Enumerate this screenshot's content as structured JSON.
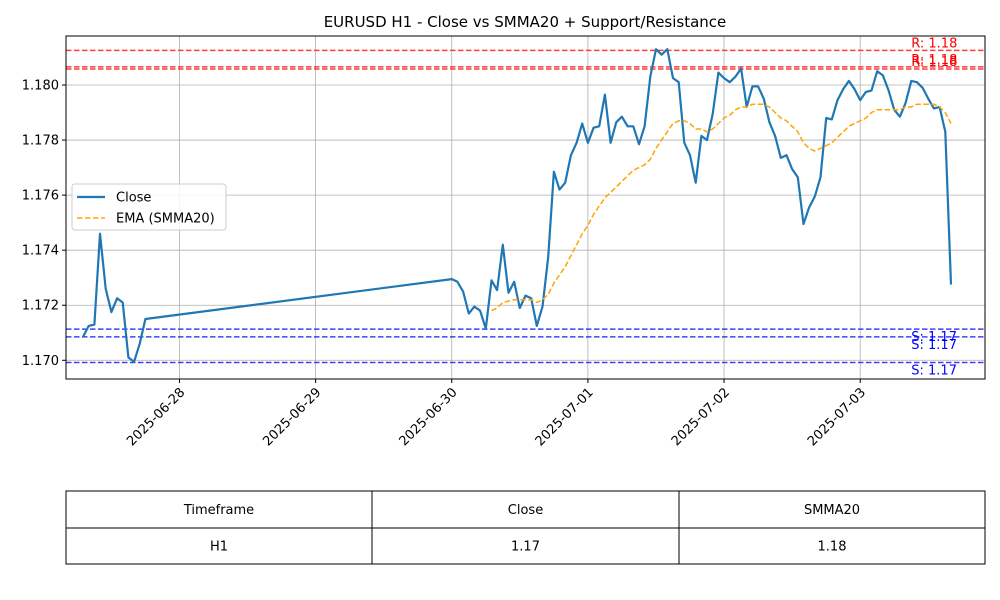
{
  "chart_data": {
    "type": "line",
    "title": "EURUSD H1 - Close vs SMMA20 + Support/Resistance",
    "xlabel": "",
    "ylabel": "",
    "x_ticks": [
      "2025-06-28",
      "2025-06-29",
      "2025-06-30",
      "2025-07-01",
      "2025-07-02",
      "2025-07-03"
    ],
    "y_ticks": [
      "1.170",
      "1.172",
      "1.174",
      "1.176",
      "1.178",
      "1.180"
    ],
    "xlim": [
      "2025-06-27 04:00",
      "2025-07-03 22:00"
    ],
    "ylim": [
      1.16932,
      1.18178
    ],
    "grid": true,
    "legend_position": "center-left",
    "series": [
      {
        "name": "Close",
        "color": "#1f77b4",
        "style": "solid",
        "points": [
          [
            "2025-06-27 07:00",
            1.17085
          ],
          [
            "2025-06-27 08:00",
            1.17125
          ],
          [
            "2025-06-27 09:00",
            1.1713
          ],
          [
            "2025-06-27 10:00",
            1.1746
          ],
          [
            "2025-06-27 11:00",
            1.1726
          ],
          [
            "2025-06-27 12:00",
            1.17175
          ],
          [
            "2025-06-27 13:00",
            1.17225
          ],
          [
            "2025-06-27 14:00",
            1.1721
          ],
          [
            "2025-06-27 15:00",
            1.1701
          ],
          [
            "2025-06-27 16:00",
            1.16995
          ],
          [
            "2025-06-27 17:00",
            1.1706
          ],
          [
            "2025-06-27 18:00",
            1.1715
          ],
          [
            "2025-06-30 00:00",
            1.17295
          ],
          [
            "2025-06-30 01:00",
            1.17285
          ],
          [
            "2025-06-30 02:00",
            1.1725
          ],
          [
            "2025-06-30 03:00",
            1.1717
          ],
          [
            "2025-06-30 04:00",
            1.17195
          ],
          [
            "2025-06-30 05:00",
            1.1718
          ],
          [
            "2025-06-30 06:00",
            1.17115
          ],
          [
            "2025-06-30 07:00",
            1.1729
          ],
          [
            "2025-06-30 08:00",
            1.17255
          ],
          [
            "2025-06-30 09:00",
            1.1742
          ],
          [
            "2025-06-30 10:00",
            1.17245
          ],
          [
            "2025-06-30 11:00",
            1.17285
          ],
          [
            "2025-06-30 12:00",
            1.1719
          ],
          [
            "2025-06-30 13:00",
            1.17235
          ],
          [
            "2025-06-30 14:00",
            1.17225
          ],
          [
            "2025-06-30 15:00",
            1.17125
          ],
          [
            "2025-06-30 16:00",
            1.17195
          ],
          [
            "2025-06-30 17:00",
            1.17375
          ],
          [
            "2025-06-30 18:00",
            1.17685
          ],
          [
            "2025-06-30 19:00",
            1.1762
          ],
          [
            "2025-06-30 20:00",
            1.17645
          ],
          [
            "2025-06-30 21:00",
            1.17745
          ],
          [
            "2025-06-30 22:00",
            1.1779
          ],
          [
            "2025-06-30 23:00",
            1.1786
          ],
          [
            "2025-07-01 00:00",
            1.1779
          ],
          [
            "2025-07-01 01:00",
            1.17845
          ],
          [
            "2025-07-01 02:00",
            1.1785
          ],
          [
            "2025-07-01 03:00",
            1.17965
          ],
          [
            "2025-07-01 04:00",
            1.1779
          ],
          [
            "2025-07-01 05:00",
            1.17865
          ],
          [
            "2025-07-01 06:00",
            1.17885
          ],
          [
            "2025-07-01 07:00",
            1.1785
          ],
          [
            "2025-07-01 08:00",
            1.1785
          ],
          [
            "2025-07-01 09:00",
            1.17785
          ],
          [
            "2025-07-01 10:00",
            1.1785
          ],
          [
            "2025-07-01 11:00",
            1.1803
          ],
          [
            "2025-07-01 12:00",
            1.1813
          ],
          [
            "2025-07-01 13:00",
            1.1811
          ],
          [
            "2025-07-01 14:00",
            1.1813
          ],
          [
            "2025-07-01 15:00",
            1.18025
          ],
          [
            "2025-07-01 16:00",
            1.1801
          ],
          [
            "2025-07-01 17:00",
            1.1779
          ],
          [
            "2025-07-01 18:00",
            1.17745
          ],
          [
            "2025-07-01 19:00",
            1.17645
          ],
          [
            "2025-07-01 20:00",
            1.17815
          ],
          [
            "2025-07-01 21:00",
            1.178
          ],
          [
            "2025-07-01 22:00",
            1.17895
          ],
          [
            "2025-07-01 23:00",
            1.18045
          ],
          [
            "2025-07-02 00:00",
            1.18025
          ],
          [
            "2025-07-02 01:00",
            1.1801
          ],
          [
            "2025-07-02 02:00",
            1.1803
          ],
          [
            "2025-07-02 03:00",
            1.1806
          ],
          [
            "2025-07-02 04:00",
            1.1792
          ],
          [
            "2025-07-02 05:00",
            1.17995
          ],
          [
            "2025-07-02 06:00",
            1.17995
          ],
          [
            "2025-07-02 07:00",
            1.1795
          ],
          [
            "2025-07-02 08:00",
            1.17865
          ],
          [
            "2025-07-02 09:00",
            1.17815
          ],
          [
            "2025-07-02 10:00",
            1.17735
          ],
          [
            "2025-07-02 11:00",
            1.17745
          ],
          [
            "2025-07-02 12:00",
            1.17695
          ],
          [
            "2025-07-02 13:00",
            1.17665
          ],
          [
            "2025-07-02 14:00",
            1.17495
          ],
          [
            "2025-07-02 15:00",
            1.17555
          ],
          [
            "2025-07-02 16:00",
            1.17595
          ],
          [
            "2025-07-02 17:00",
            1.17665
          ],
          [
            "2025-07-02 18:00",
            1.1788
          ],
          [
            "2025-07-02 19:00",
            1.17875
          ],
          [
            "2025-07-02 20:00",
            1.17945
          ],
          [
            "2025-07-02 21:00",
            1.17985
          ],
          [
            "2025-07-02 22:00",
            1.18015
          ],
          [
            "2025-07-02 23:00",
            1.17985
          ],
          [
            "2025-07-03 00:00",
            1.17945
          ],
          [
            "2025-07-03 01:00",
            1.17975
          ],
          [
            "2025-07-03 02:00",
            1.1798
          ],
          [
            "2025-07-03 03:00",
            1.1805
          ],
          [
            "2025-07-03 04:00",
            1.18035
          ],
          [
            "2025-07-03 05:00",
            1.1798
          ],
          [
            "2025-07-03 06:00",
            1.1791
          ],
          [
            "2025-07-03 07:00",
            1.17885
          ],
          [
            "2025-07-03 08:00",
            1.17935
          ],
          [
            "2025-07-03 09:00",
            1.18015
          ],
          [
            "2025-07-03 10:00",
            1.1801
          ],
          [
            "2025-07-03 11:00",
            1.1799
          ],
          [
            "2025-07-03 12:00",
            1.1795
          ],
          [
            "2025-07-03 13:00",
            1.17915
          ],
          [
            "2025-07-03 14:00",
            1.1792
          ],
          [
            "2025-07-03 15:00",
            1.1783
          ],
          [
            "2025-07-03 16:00",
            1.17275
          ]
        ]
      },
      {
        "name": "EMA (SMMA20)",
        "color": "#ffa500",
        "style": "dashed",
        "points": [
          [
            "2025-06-30 07:00",
            1.1718
          ],
          [
            "2025-06-30 08:00",
            1.1719
          ],
          [
            "2025-06-30 09:00",
            1.1721
          ],
          [
            "2025-06-30 10:00",
            1.17215
          ],
          [
            "2025-06-30 11:00",
            1.1722
          ],
          [
            "2025-06-30 12:00",
            1.1722
          ],
          [
            "2025-06-30 13:00",
            1.1722
          ],
          [
            "2025-06-30 14:00",
            1.1722
          ],
          [
            "2025-06-30 15:00",
            1.1721
          ],
          [
            "2025-06-30 16:00",
            1.1722
          ],
          [
            "2025-06-30 17:00",
            1.1724
          ],
          [
            "2025-06-30 18:00",
            1.1728
          ],
          [
            "2025-06-30 19:00",
            1.1731
          ],
          [
            "2025-06-30 20:00",
            1.1734
          ],
          [
            "2025-06-30 21:00",
            1.1738
          ],
          [
            "2025-06-30 22:00",
            1.1742
          ],
          [
            "2025-06-30 23:00",
            1.1746
          ],
          [
            "2025-07-01 00:00",
            1.1749
          ],
          [
            "2025-07-01 01:00",
            1.1753
          ],
          [
            "2025-07-01 02:00",
            1.1756
          ],
          [
            "2025-07-01 03:00",
            1.1759
          ],
          [
            "2025-07-01 04:00",
            1.1761
          ],
          [
            "2025-07-01 05:00",
            1.1763
          ],
          [
            "2025-07-01 06:00",
            1.1765
          ],
          [
            "2025-07-01 07:00",
            1.1767
          ],
          [
            "2025-07-01 08:00",
            1.1769
          ],
          [
            "2025-07-01 09:00",
            1.177
          ],
          [
            "2025-07-01 10:00",
            1.1771
          ],
          [
            "2025-07-01 11:00",
            1.1773
          ],
          [
            "2025-07-01 12:00",
            1.1777
          ],
          [
            "2025-07-01 13:00",
            1.178
          ],
          [
            "2025-07-01 14:00",
            1.1783
          ],
          [
            "2025-07-01 15:00",
            1.1786
          ],
          [
            "2025-07-01 16:00",
            1.1787
          ],
          [
            "2025-07-01 17:00",
            1.1787
          ],
          [
            "2025-07-01 18:00",
            1.1786
          ],
          [
            "2025-07-01 19:00",
            1.1784
          ],
          [
            "2025-07-01 20:00",
            1.1784
          ],
          [
            "2025-07-01 21:00",
            1.1783
          ],
          [
            "2025-07-01 22:00",
            1.1784
          ],
          [
            "2025-07-01 23:00",
            1.1786
          ],
          [
            "2025-07-02 00:00",
            1.1788
          ],
          [
            "2025-07-02 01:00",
            1.1789
          ],
          [
            "2025-07-02 02:00",
            1.1791
          ],
          [
            "2025-07-02 03:00",
            1.1792
          ],
          [
            "2025-07-02 04:00",
            1.1792
          ],
          [
            "2025-07-02 05:00",
            1.1793
          ],
          [
            "2025-07-02 06:00",
            1.1793
          ],
          [
            "2025-07-02 07:00",
            1.1793
          ],
          [
            "2025-07-02 08:00",
            1.1792
          ],
          [
            "2025-07-02 09:00",
            1.179
          ],
          [
            "2025-07-02 10:00",
            1.1788
          ],
          [
            "2025-07-02 11:00",
            1.1787
          ],
          [
            "2025-07-02 12:00",
            1.1785
          ],
          [
            "2025-07-02 13:00",
            1.1783
          ],
          [
            "2025-07-02 14:00",
            1.1779
          ],
          [
            "2025-07-02 15:00",
            1.1777
          ],
          [
            "2025-07-02 16:00",
            1.1776
          ],
          [
            "2025-07-02 17:00",
            1.1777
          ],
          [
            "2025-07-02 18:00",
            1.1778
          ],
          [
            "2025-07-02 19:00",
            1.1779
          ],
          [
            "2025-07-02 20:00",
            1.1781
          ],
          [
            "2025-07-02 21:00",
            1.1783
          ],
          [
            "2025-07-02 22:00",
            1.1785
          ],
          [
            "2025-07-02 23:00",
            1.1786
          ],
          [
            "2025-07-03 00:00",
            1.1787
          ],
          [
            "2025-07-03 01:00",
            1.1788
          ],
          [
            "2025-07-03 02:00",
            1.179
          ],
          [
            "2025-07-03 03:00",
            1.1791
          ],
          [
            "2025-07-03 04:00",
            1.1791
          ],
          [
            "2025-07-03 05:00",
            1.1791
          ],
          [
            "2025-07-03 06:00",
            1.1791
          ],
          [
            "2025-07-03 07:00",
            1.1791
          ],
          [
            "2025-07-03 08:00",
            1.1792
          ],
          [
            "2025-07-03 09:00",
            1.1792
          ],
          [
            "2025-07-03 10:00",
            1.1793
          ],
          [
            "2025-07-03 11:00",
            1.1793
          ],
          [
            "2025-07-03 12:00",
            1.1793
          ],
          [
            "2025-07-03 13:00",
            1.1793
          ],
          [
            "2025-07-03 14:00",
            1.1792
          ],
          [
            "2025-07-03 15:00",
            1.179
          ],
          [
            "2025-07-03 16:00",
            1.1786
          ]
        ]
      }
    ],
    "resistance_lines": [
      {
        "value": 1.18126,
        "label": "R: 1.18"
      },
      {
        "value": 1.18066,
        "label": "R: 1.18"
      },
      {
        "value": 1.18058,
        "label": "R: 1.18"
      }
    ],
    "support_lines": [
      {
        "value": 1.17113,
        "label": "S: 1.17"
      },
      {
        "value": 1.17085,
        "label": "S: 1.17"
      },
      {
        "value": 1.16992,
        "label": "S: 1.17"
      }
    ],
    "resistance_color": "#ff0000",
    "support_color": "#0000ff",
    "table": {
      "headers": [
        "Timeframe",
        "Close",
        "SMMA20"
      ],
      "rows": [
        [
          "H1",
          "1.17",
          "1.18"
        ]
      ]
    }
  }
}
